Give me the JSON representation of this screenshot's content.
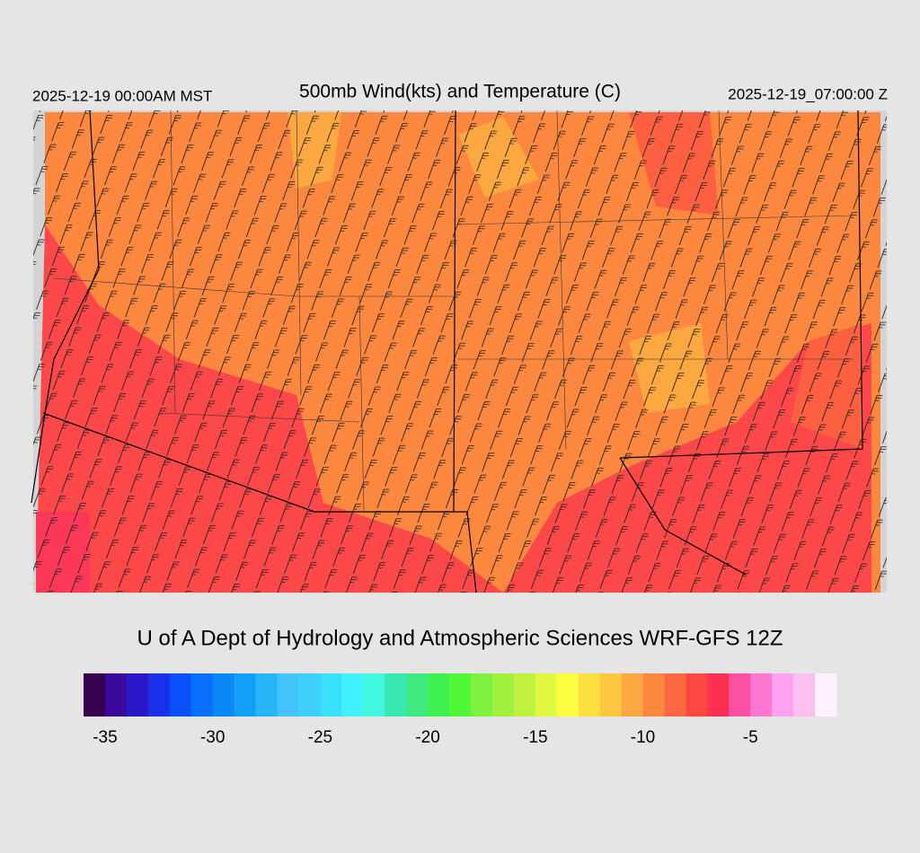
{
  "header": {
    "left": "2025-12-19 00:00AM MST",
    "title": "500mb Wind(kts) and Temperature (C)",
    "right": "2025-12-19_07:00:00 Z"
  },
  "credit": "U of A Dept of Hydrology and Atmospheric Sciences WRF-GFS 12Z",
  "colorbar": {
    "lim": [
      -36,
      -1
    ],
    "ticks": [
      -35,
      -30,
      -25,
      -20,
      -15,
      -10,
      -5
    ],
    "colors": [
      "#3a0050",
      "#3a0a9a",
      "#2a18c8",
      "#1830e8",
      "#0a50f8",
      "#0870f8",
      "#0a88f8",
      "#10a0f8",
      "#28b4f8",
      "#40c4fa",
      "#3cd0fa",
      "#38e0fc",
      "#40f0fa",
      "#40f8e0",
      "#38e8b0",
      "#40e880",
      "#40f050",
      "#50f838",
      "#80f040",
      "#a0f040",
      "#c0f040",
      "#e0f840",
      "#fcfc40",
      "#fce040",
      "#fcc840",
      "#fca840",
      "#fc8840",
      "#fc6840",
      "#fc4840",
      "#fc3050",
      "#fc50a0",
      "#fc78d0",
      "#fca0f0",
      "#fcc0f0",
      "#fff0ff"
    ]
  }
}
